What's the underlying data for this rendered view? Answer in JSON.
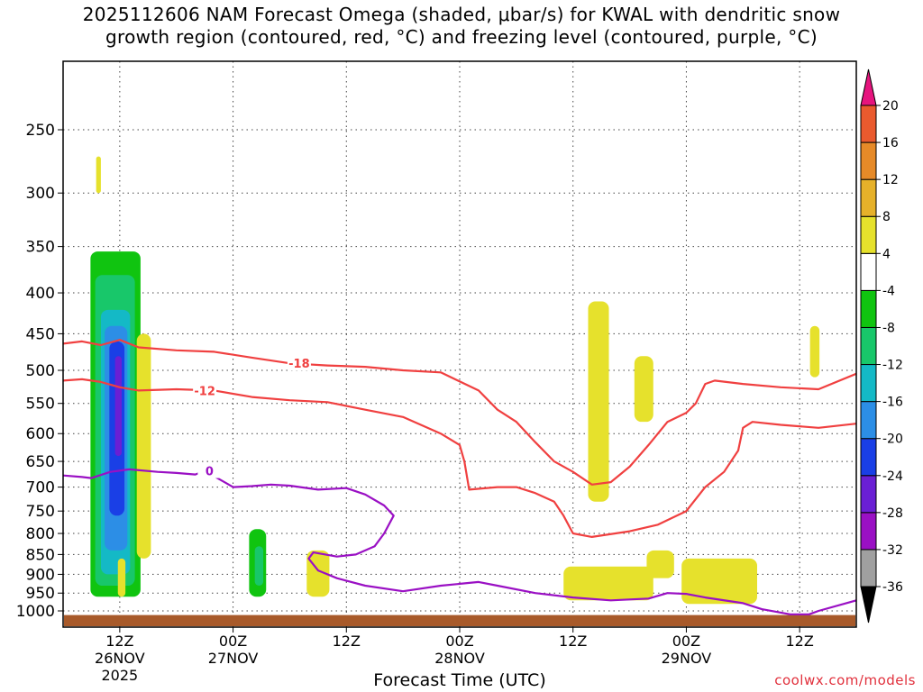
{
  "title": {
    "line1": "2025112606 NAM Forecast Omega (shaded, μbar/s) for KWAL with dendritic snow",
    "line2": "growth region (contoured, red, °C) and freezing level (contoured, purple, °C)"
  },
  "credit": "coolwx.com/models",
  "chart_data": {
    "type": "time-height cross-section",
    "xlabel": "Forecast Time (UTC)",
    "x_range_hours": [
      0,
      84
    ],
    "x_ticks": [
      {
        "hour": 6,
        "label": "12Z",
        "sublabel": "26NOV",
        "sublabel2": "2025"
      },
      {
        "hour": 18,
        "label": "00Z",
        "sublabel": "27NOV",
        "sublabel2": ""
      },
      {
        "hour": 30,
        "label": "12Z",
        "sublabel": "",
        "sublabel2": ""
      },
      {
        "hour": 42,
        "label": "00Z",
        "sublabel": "28NOV",
        "sublabel2": ""
      },
      {
        "hour": 54,
        "label": "12Z",
        "sublabel": "",
        "sublabel2": ""
      },
      {
        "hour": 66,
        "label": "00Z",
        "sublabel": "29NOV",
        "sublabel2": ""
      },
      {
        "hour": 78,
        "label": "12Z",
        "sublabel": "",
        "sublabel2": ""
      }
    ],
    "y_axis": {
      "unit": "hPa",
      "scale": "log-pressure",
      "range": [
        1025,
        200
      ],
      "ticks": [
        250,
        300,
        350,
        400,
        450,
        500,
        550,
        600,
        650,
        700,
        750,
        800,
        850,
        900,
        950,
        1000
      ]
    },
    "grid": "dotted",
    "colorbar": {
      "levels": [
        -36,
        -32,
        -28,
        -24,
        -20,
        -16,
        -12,
        -8,
        -4,
        4,
        8,
        12,
        16,
        20
      ],
      "colors": [
        "#000000",
        "#a0a0a0",
        "#9a10c4",
        "#6a1fd4",
        "#1a3fe6",
        "#2c8ee6",
        "#14b9c6",
        "#18c76a",
        "#10c410",
        "#ffffff",
        "#e6e12c",
        "#e6b12a",
        "#e68a28",
        "#ea5a2e",
        "#f0303c",
        "#e6147e"
      ]
    },
    "omega_colors": {
      "lt-32": "#a0a0a0",
      "-32..-28": "#9a10c4",
      "-28..-24": "#6a1fd4",
      "-24..-20": "#1a3fe6",
      "-20..-16": "#2c8ee6",
      "-16..-12": "#14b9c6",
      "-12..-8": "#18c76a",
      "-8..-4": "#10c410",
      "4..8": "#e6e12c"
    },
    "omega_shaded": [
      {
        "level_range": [
          -8,
          -4
        ],
        "hours": [
          2.9,
          8.2
        ],
        "pressure_hpa": [
          355,
          960
        ]
      },
      {
        "level_range": [
          -12,
          -8
        ],
        "hours": [
          3.4,
          7.6
        ],
        "pressure_hpa": [
          380,
          930
        ]
      },
      {
        "level_range": [
          -16,
          -12
        ],
        "hours": [
          4.0,
          7.1
        ],
        "pressure_hpa": [
          420,
          900
        ]
      },
      {
        "level_range": [
          -20,
          -16
        ],
        "hours": [
          4.4,
          6.8
        ],
        "pressure_hpa": [
          440,
          840
        ]
      },
      {
        "level_range": [
          -24,
          -20
        ],
        "hours": [
          4.9,
          6.5
        ],
        "pressure_hpa": [
          460,
          760
        ]
      },
      {
        "level_range": [
          -28,
          -24
        ],
        "hours": [
          5.5,
          6.2
        ],
        "pressure_hpa": [
          480,
          640
        ]
      },
      {
        "level_range": [
          -8,
          -4
        ],
        "hours": [
          19.7,
          21.5
        ],
        "pressure_hpa": [
          790,
          960
        ]
      },
      {
        "level_range": [
          -12,
          -8
        ],
        "hours": [
          20.3,
          21.2
        ],
        "pressure_hpa": [
          830,
          930
        ]
      },
      {
        "level_range": [
          4,
          8
        ],
        "hours": [
          7.8,
          9.3
        ],
        "pressure_hpa": [
          450,
          860
        ]
      },
      {
        "level_range": [
          4,
          8
        ],
        "hours": [
          3.5,
          4.0
        ],
        "pressure_hpa": [
          270,
          300
        ]
      },
      {
        "level_range": [
          4,
          8
        ],
        "hours": [
          5.8,
          6.6
        ],
        "pressure_hpa": [
          860,
          960
        ]
      },
      {
        "level_range": [
          4,
          8
        ],
        "hours": [
          25.8,
          28.2
        ],
        "pressure_hpa": [
          840,
          960
        ]
      },
      {
        "level_range": [
          4,
          8
        ],
        "hours": [
          55.6,
          57.8
        ],
        "pressure_hpa": [
          410,
          730
        ]
      },
      {
        "level_range": [
          4,
          8
        ],
        "hours": [
          60.5,
          62.5
        ],
        "pressure_hpa": [
          480,
          580
        ]
      },
      {
        "level_range": [
          4,
          8
        ],
        "hours": [
          53.0,
          62.5
        ],
        "pressure_hpa": [
          880,
          970
        ]
      },
      {
        "level_range": [
          4,
          8
        ],
        "hours": [
          61.8,
          64.7
        ],
        "pressure_hpa": [
          840,
          910
        ]
      },
      {
        "level_range": [
          4,
          8
        ],
        "hours": [
          65.5,
          73.5
        ],
        "pressure_hpa": [
          860,
          980
        ]
      },
      {
        "level_range": [
          4,
          8
        ],
        "hours": [
          79.1,
          80.1
        ],
        "pressure_hpa": [
          440,
          510
        ]
      }
    ],
    "contours": [
      {
        "label": "-18",
        "color": "#f04040",
        "label_hour": 25,
        "points": [
          [
            0,
            463
          ],
          [
            2,
            460
          ],
          [
            4,
            465
          ],
          [
            6,
            458
          ],
          [
            8,
            468
          ],
          [
            12,
            472
          ],
          [
            16,
            474
          ],
          [
            20,
            482
          ],
          [
            24,
            490
          ],
          [
            28,
            493
          ],
          [
            32,
            495
          ],
          [
            36,
            500
          ],
          [
            40,
            503
          ],
          [
            44,
            530
          ],
          [
            46,
            560
          ],
          [
            48,
            580
          ],
          [
            50,
            615
          ],
          [
            52,
            650
          ],
          [
            54,
            670
          ],
          [
            56,
            695
          ],
          [
            58,
            690
          ],
          [
            60,
            660
          ],
          [
            62,
            620
          ],
          [
            64,
            580
          ],
          [
            66,
            565
          ],
          [
            67,
            550
          ],
          [
            68,
            520
          ],
          [
            69,
            515
          ],
          [
            72,
            520
          ],
          [
            76,
            525
          ],
          [
            80,
            528
          ],
          [
            84,
            505
          ]
        ]
      },
      {
        "label": "-12",
        "color": "#f04040",
        "label_hour": 15,
        "points": [
          [
            0,
            515
          ],
          [
            2,
            513
          ],
          [
            4,
            517
          ],
          [
            6,
            525
          ],
          [
            8,
            530
          ],
          [
            12,
            528
          ],
          [
            16,
            530
          ],
          [
            20,
            540
          ],
          [
            24,
            545
          ],
          [
            28,
            548
          ],
          [
            32,
            560
          ],
          [
            36,
            572
          ],
          [
            40,
            600
          ],
          [
            42,
            620
          ],
          [
            42.5,
            650
          ],
          [
            43,
            705
          ],
          [
            46,
            700
          ],
          [
            48,
            700
          ],
          [
            50,
            712
          ],
          [
            52,
            730
          ],
          [
            53,
            760
          ],
          [
            54,
            800
          ],
          [
            56,
            808
          ],
          [
            60,
            795
          ],
          [
            63,
            780
          ],
          [
            66,
            750
          ],
          [
            68,
            700
          ],
          [
            70,
            670
          ],
          [
            71.5,
            630
          ],
          [
            72,
            590
          ],
          [
            73,
            580
          ],
          [
            76,
            585
          ],
          [
            80,
            590
          ],
          [
            84,
            583
          ]
        ]
      },
      {
        "label": "0",
        "color": "#9a10c4",
        "label_hour": 15.5,
        "points": [
          [
            0,
            677
          ],
          [
            2,
            680
          ],
          [
            3,
            682
          ],
          [
            5,
            670
          ],
          [
            7,
            665
          ],
          [
            10,
            670
          ],
          [
            12,
            672
          ],
          [
            14,
            675
          ],
          [
            15,
            668
          ],
          [
            18,
            700
          ],
          [
            20,
            698
          ],
          [
            22,
            695
          ],
          [
            24,
            697
          ],
          [
            27,
            705
          ],
          [
            30,
            702
          ],
          [
            32,
            715
          ],
          [
            34,
            738
          ],
          [
            35,
            760
          ],
          [
            34,
            800
          ],
          [
            33,
            830
          ],
          [
            31,
            850
          ],
          [
            29,
            855
          ],
          [
            26.5,
            845
          ],
          [
            26,
            860
          ],
          [
            27,
            890
          ],
          [
            29,
            910
          ],
          [
            32,
            930
          ],
          [
            36,
            945
          ],
          [
            40,
            930
          ],
          [
            44,
            920
          ],
          [
            46,
            930
          ],
          [
            50,
            950
          ],
          [
            54,
            962
          ],
          [
            58,
            970
          ],
          [
            62,
            965
          ],
          [
            64,
            950
          ],
          [
            66,
            952
          ],
          [
            68,
            962
          ],
          [
            72,
            978
          ],
          [
            74,
            995
          ],
          [
            77,
            1010
          ],
          [
            79,
            1010
          ],
          [
            80,
            1000
          ],
          [
            84,
            970
          ]
        ]
      }
    ],
    "terrain_color": "#a85a2a"
  }
}
